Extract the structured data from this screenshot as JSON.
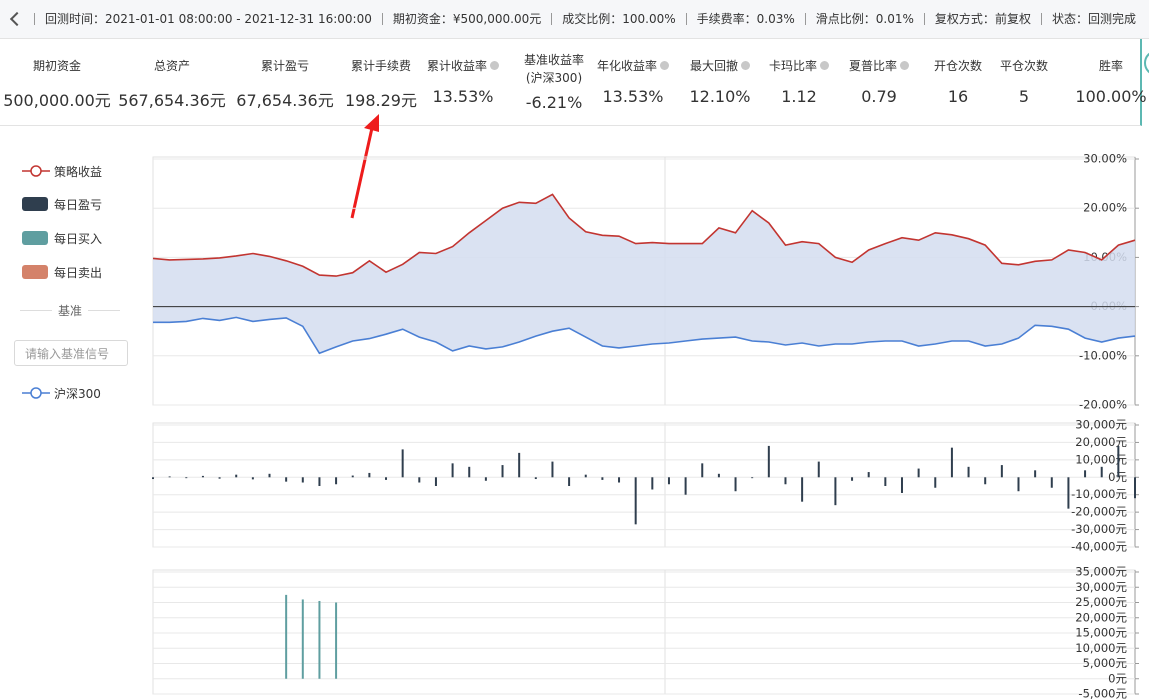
{
  "header": {
    "items": [
      {
        "label": "回测时间：",
        "value": "2021-01-01 08:00:00 - 2021-12-31 16:00:00"
      },
      {
        "label": "期初资金：",
        "value": "¥500,000.00元"
      },
      {
        "label": "成交比例：",
        "value": "100.00%"
      },
      {
        "label": "手续费率：",
        "value": "0.03%"
      },
      {
        "label": "滑点比例：",
        "value": "0.01%"
      },
      {
        "label": "复权方式：",
        "value": "前复权"
      },
      {
        "label": "状态：",
        "value": "回测完成"
      }
    ]
  },
  "metrics": [
    {
      "label": "期初资金",
      "value": "500,000.00元"
    },
    {
      "label": "总资产",
      "value": "567,654.36元"
    },
    {
      "label": "累计盈亏",
      "value": "67,654.36元"
    },
    {
      "label": "累计手续费",
      "value": "198.29元"
    },
    {
      "label": "累计收益率",
      "value": "13.53%"
    },
    {
      "label": "基准收益率",
      "sublabel": "(沪深300)",
      "value": "-6.21%"
    },
    {
      "label": "年化收益率",
      "value": "13.53%"
    },
    {
      "label": "最大回撤",
      "value": "12.10%"
    },
    {
      "label": "卡玛比率",
      "value": "1.12"
    },
    {
      "label": "夏普比率",
      "value": "0.79"
    },
    {
      "label": "开仓次数",
      "value": "16"
    },
    {
      "label": "平仓次数",
      "value": "5"
    },
    {
      "label": "胜率",
      "value": "100.00%"
    }
  ],
  "legend": {
    "benchmark_label": "基准",
    "input_placeholder": "请输入基准信号"
  },
  "chart_data": [
    {
      "type": "line",
      "area": true,
      "ylim": [
        -20,
        30
      ],
      "yticks": [
        {
          "value": 30,
          "label": "30.00%"
        },
        {
          "value": 20,
          "label": "20.00%"
        },
        {
          "value": 10,
          "label": "10.00%"
        },
        {
          "value": 0,
          "label": "0.00%"
        },
        {
          "value": -10,
          "label": "-10.00%"
        },
        {
          "value": -20,
          "label": "-20.00%"
        }
      ],
      "series": [
        {
          "name": "策略收益",
          "color": "#c23531",
          "values": [
            9.8,
            9.5,
            9.6,
            9.7,
            9.9,
            10.3,
            10.8,
            10.2,
            9.3,
            8.2,
            6.4,
            6.2,
            6.9,
            9.3,
            7.0,
            8.6,
            11.0,
            10.8,
            12.2,
            15.0,
            17.5,
            20.0,
            21.2,
            21.0,
            22.8,
            18.0,
            15.2,
            14.5,
            14.3,
            12.8,
            13.0,
            12.8,
            12.8,
            12.8,
            16.0,
            15.0,
            19.5,
            17.0,
            12.5,
            13.2,
            12.8,
            10.0,
            9.0,
            11.5,
            12.8,
            14.0,
            13.5,
            15.0,
            14.6,
            13.8,
            12.5,
            8.8,
            8.5,
            9.2,
            9.5,
            11.5,
            11.0,
            9.5,
            12.5,
            13.5
          ]
        },
        {
          "name": "沪深300",
          "color": "#4a7fd4",
          "values": [
            -3.2,
            -3.2,
            -3.0,
            -2.4,
            -2.8,
            -2.2,
            -3.0,
            -2.6,
            -2.3,
            -4.0,
            -9.5,
            -8.2,
            -7.0,
            -6.5,
            -5.6,
            -4.6,
            -6.2,
            -7.2,
            -9.0,
            -8.0,
            -8.6,
            -8.2,
            -7.2,
            -6.0,
            -5.0,
            -4.4,
            -6.2,
            -8.0,
            -8.4,
            -8.0,
            -7.6,
            -7.4,
            -7.0,
            -6.6,
            -6.4,
            -6.2,
            -7.0,
            -7.2,
            -7.8,
            -7.4,
            -8.0,
            -7.6,
            -7.6,
            -7.2,
            -7.0,
            -7.0,
            -8.0,
            -7.6,
            -7.0,
            -7.0,
            -8.0,
            -7.6,
            -6.4,
            -3.8,
            -4.0,
            -4.6,
            -6.4,
            -7.2,
            -6.4,
            -6.0
          ]
        }
      ]
    },
    {
      "type": "bar",
      "ylim": [
        -40000,
        30000
      ],
      "yticks": [
        {
          "value": 30000,
          "label": "30,000元"
        },
        {
          "value": 20000,
          "label": "20,000元"
        },
        {
          "value": 10000,
          "label": "10,000元"
        },
        {
          "value": 0,
          "label": "0元"
        },
        {
          "value": -10000,
          "label": "-10,000元"
        },
        {
          "value": -20000,
          "label": "-20,000元"
        },
        {
          "value": -30000,
          "label": "-30,000元"
        },
        {
          "value": -40000,
          "label": "-40,000元"
        }
      ],
      "series": [
        {
          "name": "每日盈亏",
          "color": "#2f3e4e",
          "values": [
            -1000,
            500,
            -500,
            800,
            -800,
            1500,
            -1200,
            2000,
            -2500,
            -3000,
            -5000,
            -4000,
            1000,
            2500,
            -1500,
            16000,
            -3000,
            -5000,
            8000,
            6000,
            -2000,
            7000,
            14000,
            -1000,
            9000,
            -5000,
            1500,
            -1500,
            -3000,
            -27000,
            -7000,
            -4000,
            -10000,
            8000,
            2000,
            -8000,
            -500,
            18000,
            -4000,
            -14000,
            9000,
            -16000,
            -2000,
            3000,
            -5000,
            -9000,
            5000,
            -6000,
            17000,
            6000,
            -4000,
            7000,
            -8000,
            4000,
            -6000,
            -18000,
            4000,
            6000,
            18000,
            -12000
          ]
        }
      ]
    },
    {
      "type": "bar",
      "ylim": [
        -5000,
        35000
      ],
      "yticks": [
        {
          "value": 35000,
          "label": "35,000元"
        },
        {
          "value": 30000,
          "label": "30,000元"
        },
        {
          "value": 25000,
          "label": "25,000元"
        },
        {
          "value": 20000,
          "label": "20,000元"
        },
        {
          "value": 15000,
          "label": "15,000元"
        },
        {
          "value": 10000,
          "label": "10,000元"
        },
        {
          "value": 5000,
          "label": "5,000元"
        },
        {
          "value": 0,
          "label": "0元"
        },
        {
          "value": -5000,
          "label": "-5,000元"
        }
      ],
      "series": [
        {
          "name": "每日买入",
          "color": "#5f9ea0",
          "values": [
            null,
            null,
            null,
            null,
            null,
            null,
            null,
            null,
            27500,
            26000,
            25500,
            25000,
            null,
            null,
            null,
            null,
            null,
            null,
            null,
            null,
            null,
            null,
            null,
            null,
            null,
            null,
            null,
            null,
            null,
            null,
            null,
            null,
            null,
            null,
            null,
            null,
            null,
            null,
            null,
            null,
            null,
            null,
            null,
            null,
            null,
            null,
            null,
            null,
            null,
            null,
            null,
            null,
            null,
            null,
            null,
            null,
            null,
            null,
            null,
            null
          ]
        },
        {
          "name": "每日卖出",
          "color": "#d4826a",
          "values": [
            null,
            null,
            null,
            null,
            null,
            null,
            null,
            null,
            null,
            null,
            null,
            null,
            null,
            null,
            null,
            null,
            null,
            null,
            null,
            null,
            null,
            null,
            null,
            null,
            null,
            null,
            null,
            null,
            null,
            null,
            null,
            null,
            null,
            null,
            null,
            null,
            null,
            null,
            null,
            null,
            null,
            null,
            null,
            null,
            null,
            null,
            null,
            null,
            null,
            null,
            null,
            null,
            null,
            null,
            null,
            null,
            null,
            null,
            null,
            null
          ]
        }
      ]
    }
  ]
}
